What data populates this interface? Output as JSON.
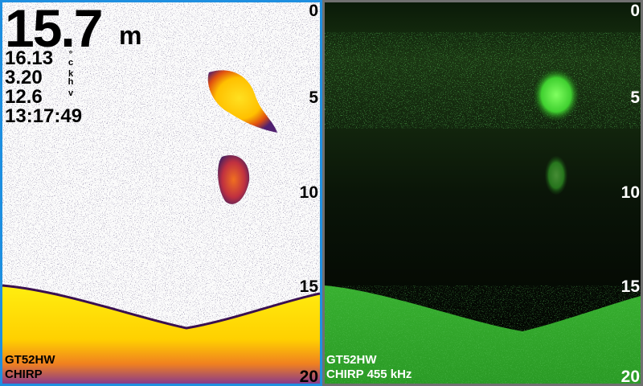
{
  "left_pane": {
    "depth": {
      "value": "15.7",
      "unit": "m"
    },
    "readouts": [
      {
        "value": "16.13",
        "unit_lines": [
          "°",
          "c"
        ]
      },
      {
        "value": "3.20",
        "unit_lines": [
          "k",
          "h"
        ]
      },
      {
        "value": "12.6",
        "unit_lines": [
          "v"
        ]
      },
      {
        "value": "13:17:49",
        "unit_lines": []
      }
    ],
    "scale": [
      "0",
      "5",
      "10",
      "15",
      "20"
    ],
    "footer": [
      "GT52HW",
      "CHIRP"
    ]
  },
  "right_pane": {
    "scale": [
      "0",
      "5",
      "10",
      "15",
      "20"
    ],
    "footer": [
      "GT52HW",
      "CHIRP 455 kHz"
    ]
  }
}
